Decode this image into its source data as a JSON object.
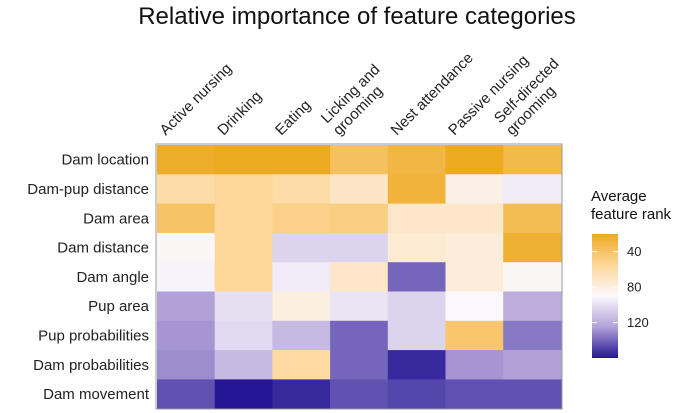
{
  "chart_data": {
    "type": "heatmap",
    "title": "Relative importance of feature categories",
    "columns": [
      [
        "Active nursing"
      ],
      [
        "Drinking"
      ],
      [
        "Eating"
      ],
      [
        "Licking and",
        "grooming"
      ],
      [
        "Nest attendance"
      ],
      [
        "Passive nursing"
      ],
      [
        "Self-directed",
        "grooming"
      ]
    ],
    "rows": [
      "Dam location",
      "Dam-pup distance",
      "Dam area",
      "Dam distance",
      "Dam angle",
      "Pup area",
      "Pup probabilities",
      "Dam probabilities",
      "Dam movement"
    ],
    "values": [
      [
        22,
        20,
        15,
        38,
        30,
        18,
        32
      ],
      [
        60,
        55,
        60,
        70,
        28,
        82,
        95
      ],
      [
        40,
        55,
        50,
        48,
        72,
        72,
        35
      ],
      [
        88,
        55,
        105,
        105,
        75,
        78,
        25
      ],
      [
        92,
        55,
        95,
        72,
        140,
        78,
        88
      ],
      [
        125,
        100,
        80,
        98,
        105,
        90,
        120
      ],
      [
        128,
        102,
        115,
        140,
        105,
        42,
        135
      ],
      [
        130,
        115,
        58,
        140,
        155,
        128,
        125
      ],
      [
        145,
        160,
        155,
        145,
        148,
        145,
        145
      ]
    ],
    "legend": {
      "title": [
        "Average",
        "feature rank"
      ],
      "ticks": [
        40,
        80,
        120
      ],
      "range": [
        20,
        160
      ]
    },
    "colors": {
      "low": "#eca922",
      "mid_low": "#fdd79a",
      "mid": "#fbf8fc",
      "mid_high": "#b2a1d8",
      "high": "#241694"
    }
  }
}
